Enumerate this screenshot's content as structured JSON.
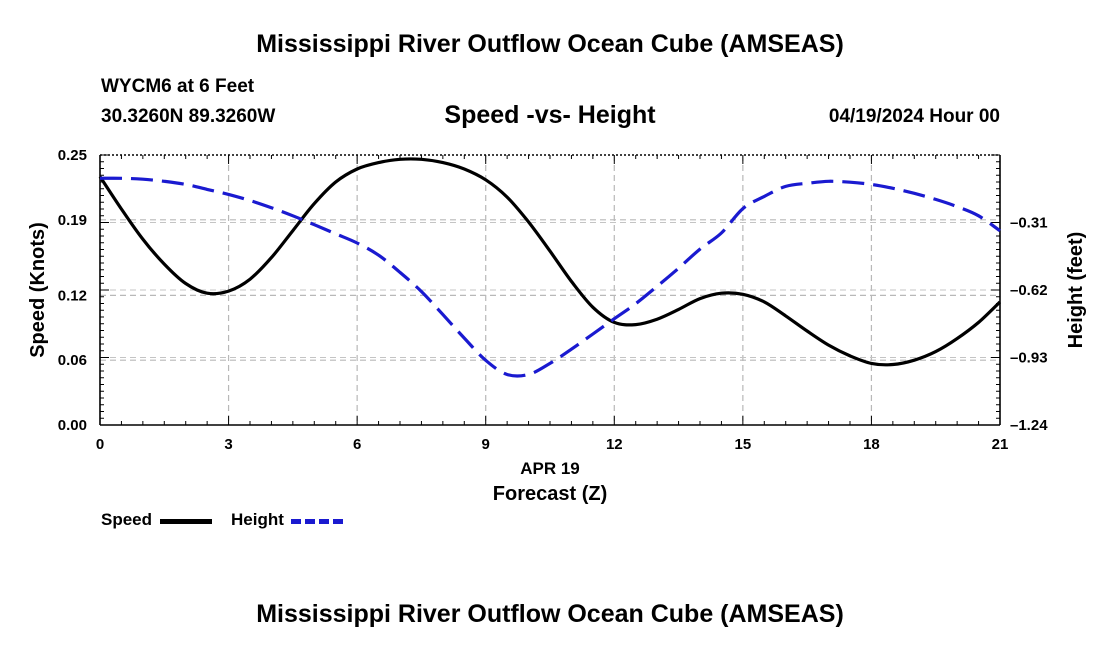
{
  "chart_data": {
    "type": "line",
    "title": "Mississippi River Outflow Ocean Cube (AMSEAS)",
    "station": "WYCM6 at 6 Feet",
    "location": "30.3260N  89.3260W",
    "subtitle": "Speed -vs- Height",
    "datetime": "04/19/2024 Hour 00",
    "xlabel_date": "APR 19",
    "xlabel": "Forecast (Z)",
    "ylabel_left": "Speed (Knots)",
    "ylabel_right": "Height (feet)",
    "xlim": [
      0,
      21
    ],
    "ylim_left": [
      0,
      0.25
    ],
    "ylim_right": [
      -1.24,
      0
    ],
    "x_ticks": [
      "0",
      "3",
      "6",
      "9",
      "12",
      "15",
      "18",
      "21"
    ],
    "y_ticks_left": [
      "0.25",
      "0.19",
      "0.12",
      "0.06",
      "0.00"
    ],
    "y_ticks_right": [
      "-0.31",
      "-0.62",
      "-0.93",
      "-1.24"
    ],
    "grid": true,
    "series": [
      {
        "name": "Speed",
        "color": "#000000",
        "dash": "solid",
        "axis": "left",
        "x": [
          0,
          0.5,
          1,
          1.5,
          2,
          2.5,
          3,
          3.5,
          4,
          4.5,
          5,
          5.5,
          6,
          6.5,
          7,
          7.5,
          8,
          8.5,
          9,
          9.5,
          10,
          10.5,
          11,
          11.5,
          12,
          12.5,
          13,
          13.5,
          14,
          14.5,
          15,
          15.5,
          16,
          16.5,
          17,
          17.5,
          18,
          18.5,
          19,
          19.5,
          20,
          20.5,
          21
        ],
        "values": [
          0.23,
          0.2,
          0.172,
          0.149,
          0.131,
          0.122,
          0.124,
          0.135,
          0.155,
          0.18,
          0.205,
          0.225,
          0.237,
          0.243,
          0.246,
          0.246,
          0.243,
          0.237,
          0.227,
          0.211,
          0.188,
          0.161,
          0.133,
          0.109,
          0.095,
          0.093,
          0.098,
          0.107,
          0.117,
          0.122,
          0.121,
          0.114,
          0.101,
          0.087,
          0.074,
          0.064,
          0.057,
          0.056,
          0.06,
          0.068,
          0.08,
          0.095,
          0.114
        ]
      },
      {
        "name": "Height",
        "color": "#1a1ad0",
        "dash": "dashed",
        "axis": "right",
        "x": [
          0,
          0.5,
          1,
          1.5,
          2,
          2.5,
          3,
          3.5,
          4,
          4.5,
          5,
          5.5,
          6,
          6.5,
          7,
          7.5,
          8,
          8.5,
          9,
          9.5,
          10,
          10.5,
          11,
          11.5,
          12,
          12.5,
          13,
          13.5,
          14,
          14.5,
          15,
          15.5,
          16,
          16.5,
          17,
          17.5,
          18,
          18.5,
          19,
          19.5,
          20,
          20.5,
          21
        ],
        "values": [
          -0.107,
          -0.107,
          -0.111,
          -0.121,
          -0.135,
          -0.158,
          -0.181,
          -0.209,
          -0.242,
          -0.279,
          -0.32,
          -0.362,
          -0.404,
          -0.46,
          -0.539,
          -0.627,
          -0.733,
          -0.841,
          -0.943,
          -1.008,
          -1.008,
          -0.957,
          -0.892,
          -0.822,
          -0.752,
          -0.683,
          -0.603,
          -0.52,
          -0.432,
          -0.358,
          -0.246,
          -0.19,
          -0.144,
          -0.13,
          -0.121,
          -0.125,
          -0.135,
          -0.153,
          -0.176,
          -0.204,
          -0.237,
          -0.279,
          -0.348
        ]
      }
    ]
  },
  "footer_title": "Mississippi River Outflow Ocean Cube (AMSEAS)"
}
